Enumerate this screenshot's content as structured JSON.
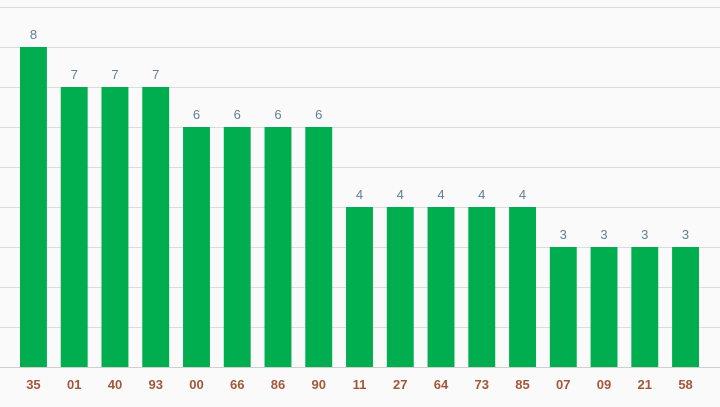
{
  "chart_data": {
    "type": "bar",
    "categories": [
      "35",
      "01",
      "40",
      "93",
      "00",
      "66",
      "86",
      "90",
      "11",
      "27",
      "64",
      "73",
      "85",
      "07",
      "09",
      "21",
      "58"
    ],
    "values": [
      8,
      7,
      7,
      7,
      6,
      6,
      6,
      6,
      4,
      4,
      4,
      4,
      4,
      3,
      3,
      3,
      3
    ],
    "ylim": [
      0,
      9
    ],
    "grid": true,
    "show_data_labels": true,
    "colors": {
      "bar": "#00ad4f",
      "value_label": "#5f7f96",
      "category_label": "#a3573a",
      "grid": "#dcdcdc"
    }
  }
}
